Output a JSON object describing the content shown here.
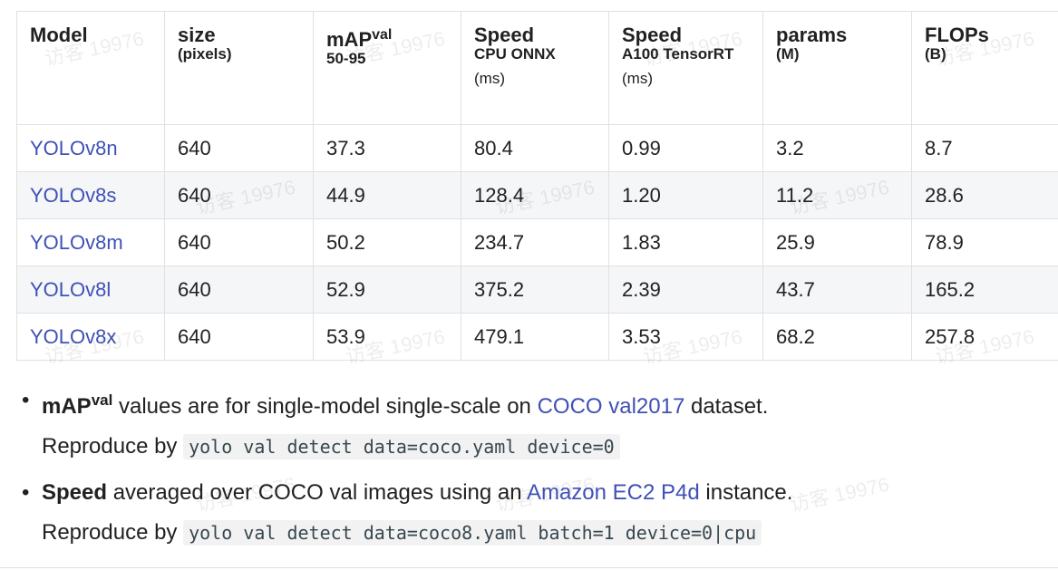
{
  "table": {
    "headers": [
      {
        "main": "Model",
        "sup": "",
        "sub": "",
        "plain": ""
      },
      {
        "main": "size",
        "sup": "",
        "sub": "(pixels)",
        "plain": ""
      },
      {
        "main": "mAP",
        "sup": "val",
        "sub": "50-95",
        "plain": ""
      },
      {
        "main": "Speed",
        "sup": "",
        "sub": "CPU ONNX",
        "plain": "(ms)"
      },
      {
        "main": "Speed",
        "sup": "",
        "sub": "A100 TensorRT",
        "plain": "(ms)"
      },
      {
        "main": "params",
        "sup": "",
        "sub": "(M)",
        "plain": ""
      },
      {
        "main": "FLOPs",
        "sup": "",
        "sub": "(B)",
        "plain": ""
      }
    ],
    "rows": [
      {
        "model": "YOLOv8n",
        "size": "640",
        "map": "37.3",
        "cpu": "80.4",
        "gpu": "0.99",
        "params": "3.2",
        "flops": "8.7"
      },
      {
        "model": "YOLOv8s",
        "size": "640",
        "map": "44.9",
        "cpu": "128.4",
        "gpu": "1.20",
        "params": "11.2",
        "flops": "28.6"
      },
      {
        "model": "YOLOv8m",
        "size": "640",
        "map": "50.2",
        "cpu": "234.7",
        "gpu": "1.83",
        "params": "25.9",
        "flops": "78.9"
      },
      {
        "model": "YOLOv8l",
        "size": "640",
        "map": "52.9",
        "cpu": "375.2",
        "gpu": "2.39",
        "params": "43.7",
        "flops": "165.2"
      },
      {
        "model": "YOLOv8x",
        "size": "640",
        "map": "53.9",
        "cpu": "479.1",
        "gpu": "3.53",
        "params": "68.2",
        "flops": "257.8"
      }
    ]
  },
  "notes": [
    {
      "lead": "mAP",
      "lead_sup": "val",
      "text_before": " values are for single-model single-scale on ",
      "link": "COCO val2017",
      "text_after": " dataset.",
      "reproduce_label": "Reproduce by ",
      "command": "yolo val detect data=coco.yaml device=0"
    },
    {
      "lead": "Speed",
      "lead_sup": "",
      "text_before": " averaged over COCO val images using an ",
      "link": "Amazon EC2 P4d",
      "text_after": " instance.",
      "reproduce_label": "Reproduce by ",
      "command": "yolo val detect data=coco8.yaml batch=1 device=0|cpu"
    }
  ],
  "watermark": "访客 19976",
  "colors": {
    "link": "#3f51b5",
    "row_alt": "#f5f6f8",
    "border": "#e0e0e0"
  }
}
